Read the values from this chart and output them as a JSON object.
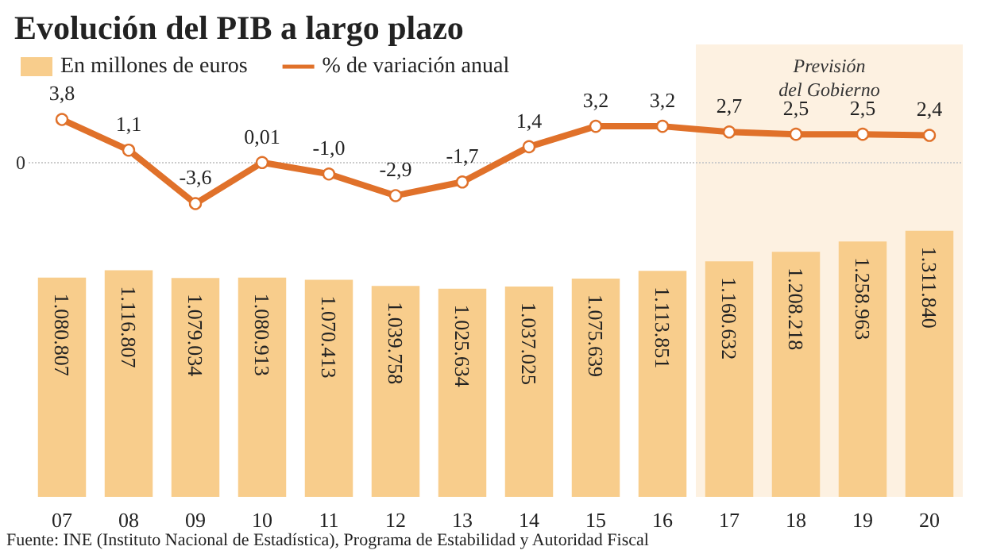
{
  "chart_data": {
    "type": "bar",
    "title": "Evolución del PIB a largo plazo",
    "categories": [
      "07",
      "08",
      "09",
      "10",
      "11",
      "12",
      "13",
      "14",
      "15",
      "16",
      "17",
      "18",
      "19",
      "20"
    ],
    "series": [
      {
        "name": "En millones de euros",
        "axis": "y2",
        "color": "#f8cd8c",
        "values": [
          1080807,
          1116807,
          1079034,
          1080913,
          1070413,
          1039758,
          1025634,
          1037025,
          1075639,
          1113851,
          1160632,
          1208218,
          1258963,
          1311840
        ],
        "value_labels": [
          "1.080.807",
          "1.116.807",
          "1.079.034",
          "1.080.913",
          "1.070.413",
          "1.039.758",
          "1.025.634",
          "1.037.025",
          "1.075.639",
          "1.113.851",
          "1.160.632",
          "1.208.218",
          "1.258.963",
          "1.311.840"
        ]
      },
      {
        "name": "% de variación anual",
        "type": "line",
        "color": "#e0712a",
        "values": [
          3.8,
          1.1,
          -3.6,
          0.01,
          -1.0,
          -2.9,
          -1.7,
          1.4,
          3.2,
          3.2,
          2.7,
          2.5,
          2.5,
          2.4
        ],
        "value_labels": [
          "3,8",
          "1,1",
          "-3,6",
          "0,01",
          "-1,0",
          "-2,9",
          "-1,7",
          "1,4",
          "3,2",
          "3,2",
          "2,7",
          "2,5",
          "2,5",
          "2,4"
        ]
      }
    ],
    "ylim": [
      -29.4,
      10.4
    ],
    "ref_lines": [
      {
        "axis": "y",
        "value": 0,
        "label": "0",
        "color": "#cccccc",
        "line_style": "dotted"
      }
    ],
    "bands": [
      {
        "axis": "x",
        "from": "17",
        "to": "20",
        "label": "Previsión\ndel Gobierno",
        "color": "#fdf1e1"
      }
    ],
    "legend": "top left",
    "marker": "circle",
    "data_labels": true,
    "annotations": [
      "Fuente: INE (Instituto Nacional de Estadística), Programa de Estabilidad y Autoridad Fiscal"
    ]
  }
}
